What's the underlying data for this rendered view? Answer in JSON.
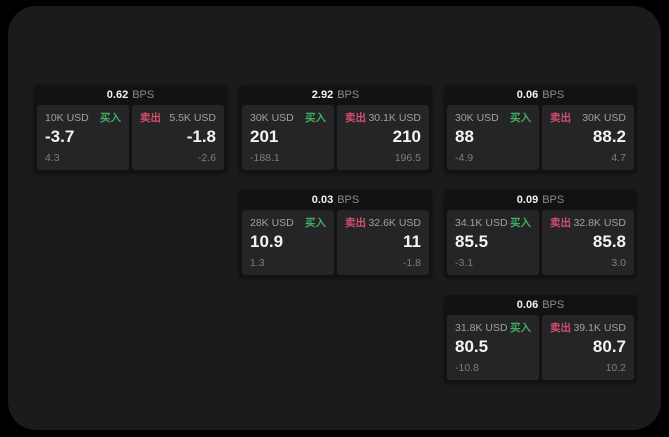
{
  "labels": {
    "buy": "买入",
    "sell": "卖出",
    "bps_unit": "BPS"
  },
  "colors": {
    "buy": "#3fae5f",
    "sell": "#cf4f6d",
    "page-bg": "#000000",
    "window-bg": "#1b1b1c",
    "card-bg": "#121214",
    "panel-bg": "#252527"
  },
  "cards": [
    {
      "bps": "0.62",
      "buy": {
        "amount": "10K USD",
        "value": "-3.7",
        "sub": "4.3"
      },
      "sell": {
        "amount": "5.5K USD",
        "value": "-1.8",
        "sub": "-2.6"
      }
    },
    {
      "bps": "2.92",
      "buy": {
        "amount": "30K USD",
        "value": "201",
        "sub": "-188.1"
      },
      "sell": {
        "amount": "30.1K USD",
        "value": "210",
        "sub": "196.5"
      }
    },
    {
      "bps": "0.06",
      "buy": {
        "amount": "30K USD",
        "value": "88",
        "sub": "-4.9"
      },
      "sell": {
        "amount": "30K USD",
        "value": "88.2",
        "sub": "4.7"
      }
    },
    {
      "bps": "0.03",
      "buy": {
        "amount": "28K USD",
        "value": "10.9",
        "sub": "1.3"
      },
      "sell": {
        "amount": "32.6K USD",
        "value": "11",
        "sub": "-1.8"
      }
    },
    {
      "bps": "0.09",
      "buy": {
        "amount": "34.1K USD",
        "value": "85.5",
        "sub": "-3.1"
      },
      "sell": {
        "amount": "32.8K USD",
        "value": "85.8",
        "sub": "3.0"
      }
    },
    {
      "bps": "0.06",
      "buy": {
        "amount": "31.8K USD",
        "value": "80.5",
        "sub": "-10.8"
      },
      "sell": {
        "amount": "39.1K USD",
        "value": "80.7",
        "sub": "10.2"
      }
    }
  ]
}
